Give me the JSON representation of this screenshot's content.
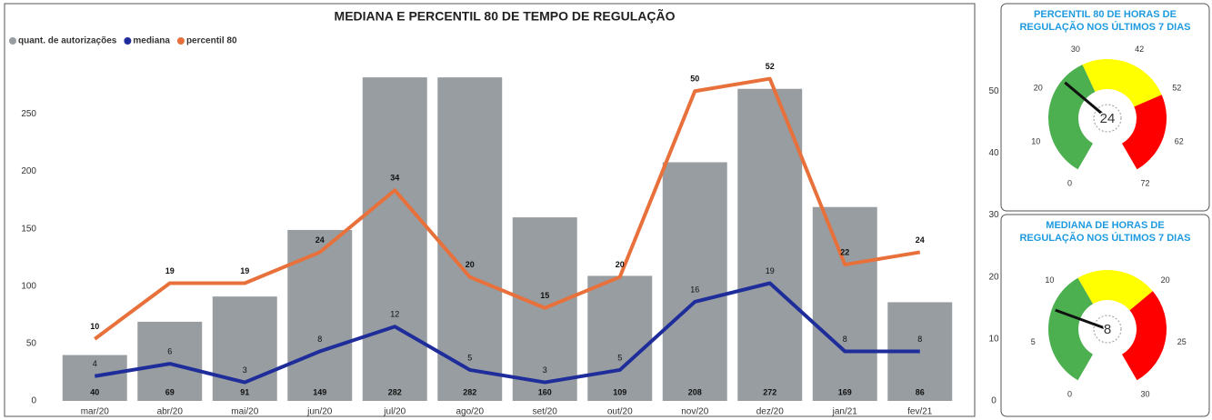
{
  "chart_data": [
    {
      "type": "combo",
      "title": "MEDIANA E PERCENTIL 80 DE TEMPO DE REGULAÇÃO",
      "categories": [
        "mar/20",
        "abr/20",
        "mai/20",
        "jun/20",
        "jul/20",
        "ago/20",
        "set/20",
        "out/20",
        "nov/20",
        "dez/20",
        "jan/21",
        "fev/21"
      ],
      "series": [
        {
          "name": "quant. de autorizações",
          "type": "bar",
          "color": "#979da1",
          "values": [
            40,
            69,
            91,
            149,
            282,
            282,
            160,
            109,
            208,
            272,
            169,
            86
          ]
        },
        {
          "name": "mediana",
          "type": "line",
          "axis": "y2",
          "color": "#1f2d9b",
          "values": [
            4,
            6,
            3,
            8,
            12,
            5,
            3,
            5,
            16,
            19,
            8,
            8
          ]
        },
        {
          "name": "percentil 80",
          "type": "line",
          "axis": "y2",
          "color": "#e8703a",
          "values": [
            10,
            19,
            19,
            24,
            34,
            20,
            15,
            20,
            50,
            52,
            22,
            24
          ]
        }
      ],
      "ylim": [
        0,
        290
      ],
      "yticks": [
        0,
        50,
        100,
        150,
        200,
        250
      ],
      "y2lim": [
        0,
        53.7
      ],
      "y2ticks": [
        0,
        10,
        20,
        30,
        40,
        50
      ],
      "legend": "top-left"
    },
    {
      "type": "gauge",
      "title": "PERCENTIL 80 DE HORAS DE REGULAÇÃO NOS ÚLTIMOS 7 DIAS",
      "value": 24,
      "lim": [
        0,
        72
      ],
      "ticks": [
        0,
        10,
        20,
        30,
        42,
        52,
        62,
        72
      ],
      "bands": [
        {
          "from": 0,
          "to": 30,
          "color": "#4caf50"
        },
        {
          "from": 30,
          "to": 52,
          "color": "#ffff00"
        },
        {
          "from": 52,
          "to": 72,
          "color": "#ff0000"
        }
      ]
    },
    {
      "type": "gauge",
      "title": "MEDIANA DE HORAS DE REGULAÇÃO NOS ÚLTIMOS 7 DIAS",
      "value": 8,
      "lim": [
        0,
        30
      ],
      "ticks": [
        0,
        5,
        10,
        20,
        25,
        30
      ],
      "bands": [
        {
          "from": 0,
          "to": 12,
          "color": "#4caf50"
        },
        {
          "from": 12,
          "to": 20,
          "color": "#ffff00"
        },
        {
          "from": 20,
          "to": 30,
          "color": "#ff0000"
        }
      ]
    }
  ]
}
